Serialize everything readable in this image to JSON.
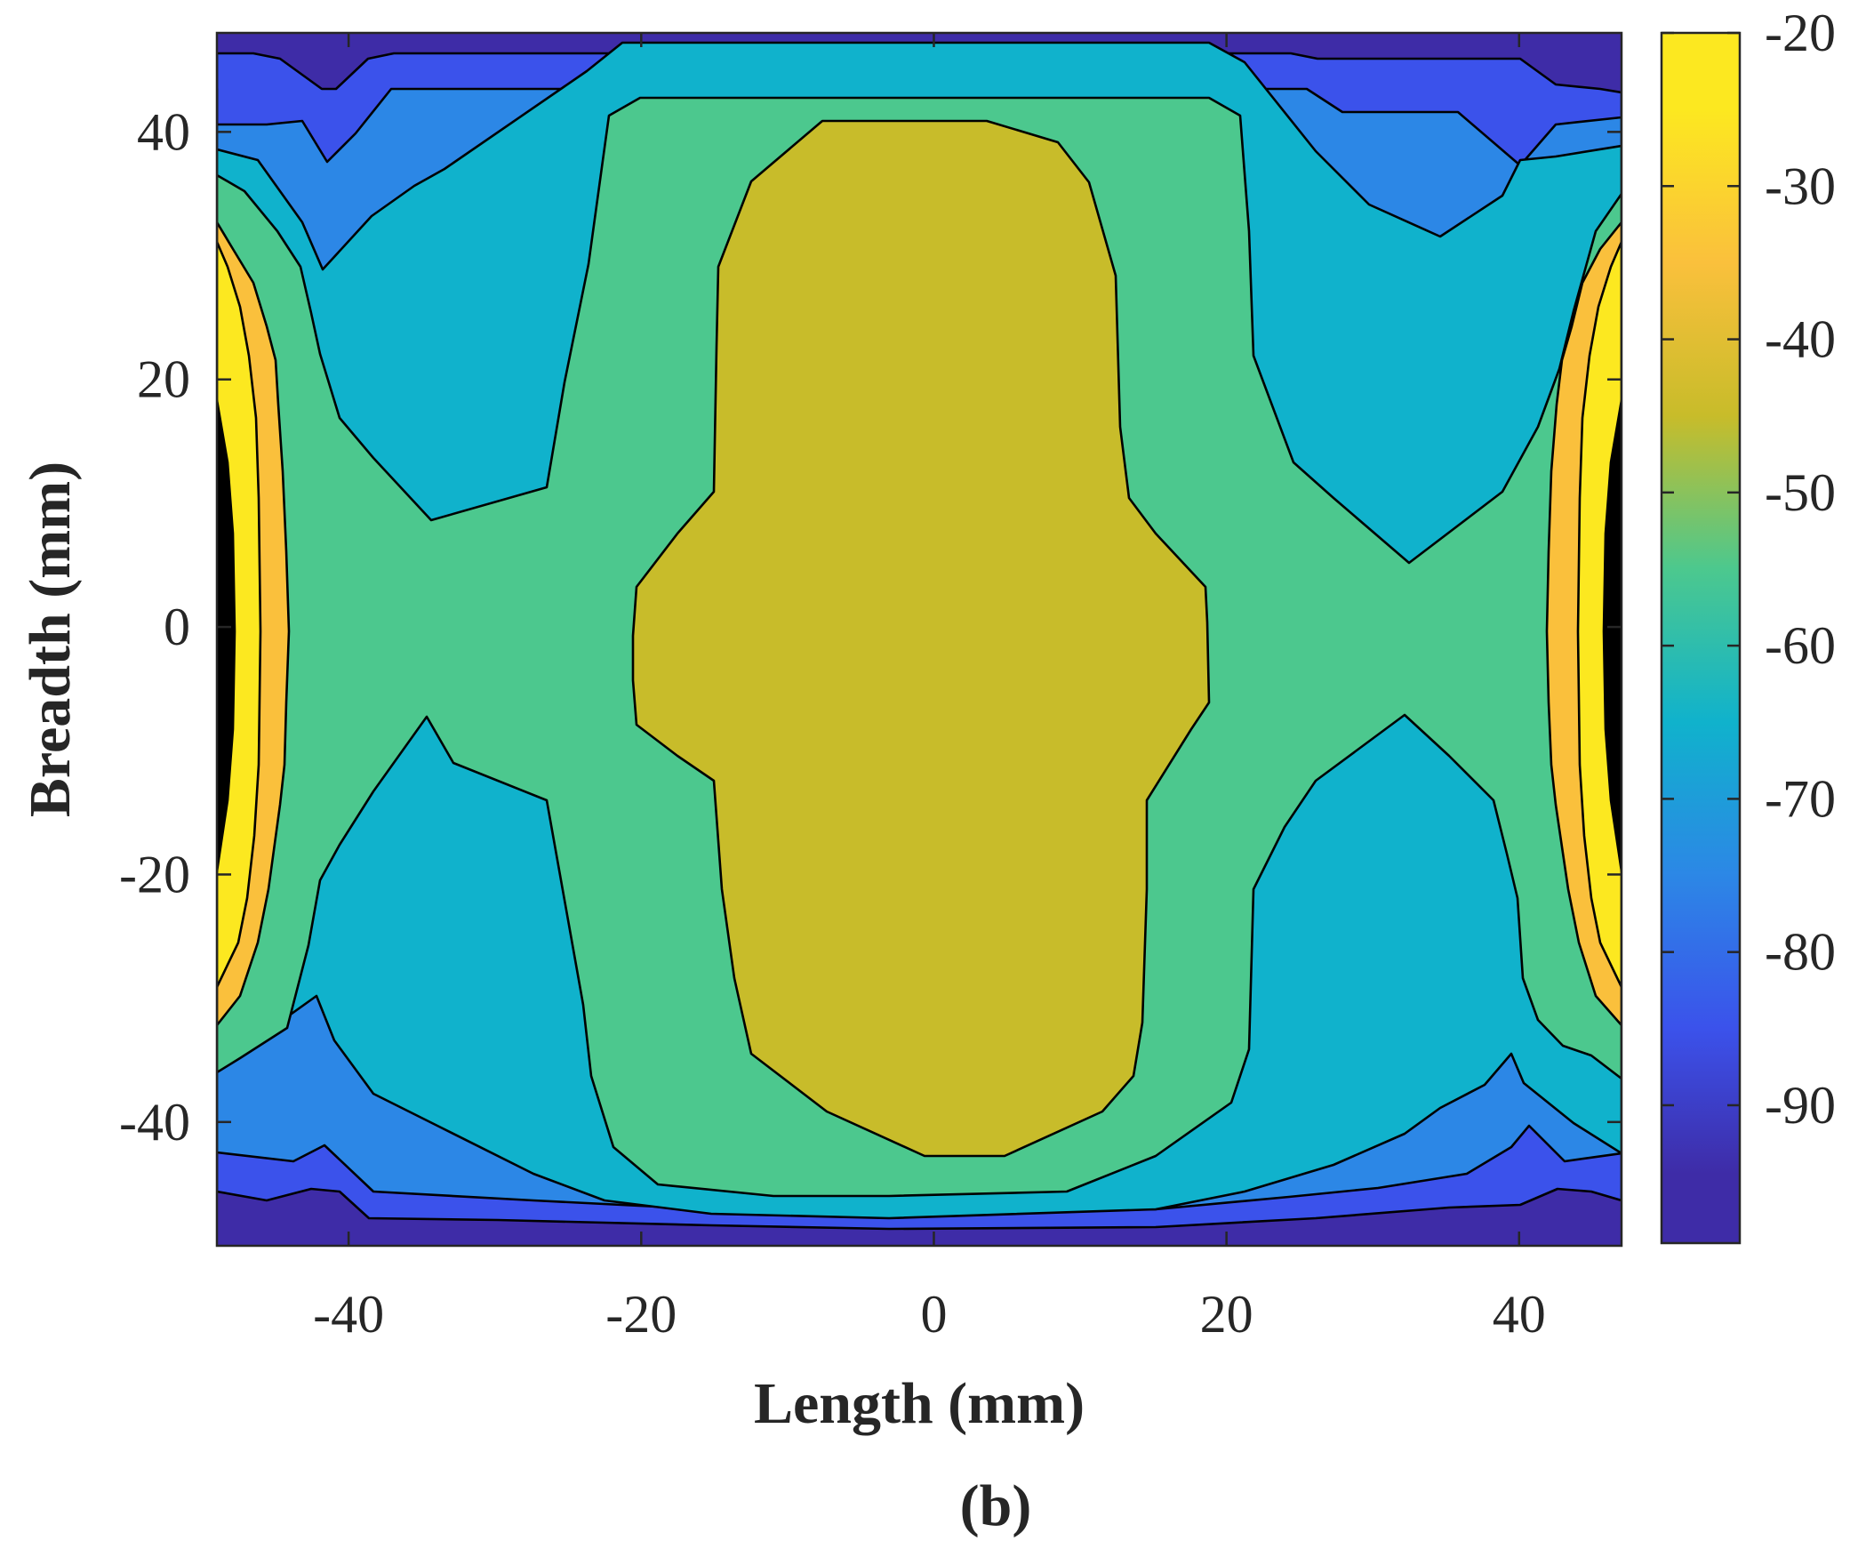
{
  "chart_data": {
    "type": "contour",
    "xlabel": "Length (mm)",
    "ylabel": "Breadth (mm)",
    "panel_label": "(b)",
    "xlim": [
      -49,
      47
    ],
    "ylim": [
      -50,
      48
    ],
    "x_ticks": [
      -40,
      -20,
      0,
      20,
      40
    ],
    "y_ticks": [
      -40,
      -20,
      0,
      20,
      40
    ],
    "x_tick_labels": [
      "-40",
      "-20",
      "0",
      "20",
      "40"
    ],
    "y_tick_labels": [
      "-40",
      "-20",
      "0",
      "20",
      "40"
    ],
    "colorbar": {
      "range": [
        -99,
        -20
      ],
      "ticks": [
        -20,
        -30,
        -40,
        -50,
        -60,
        -70,
        -80,
        -90
      ],
      "tick_labels": [
        "-20",
        "-30",
        "-40",
        "-50",
        "-60",
        "-70",
        "-80",
        "-90"
      ]
    },
    "colormap": "parula",
    "levels": [
      {
        "min": -99,
        "max": -90,
        "color": "#3e2ca7"
      },
      {
        "min": -90,
        "max": -80,
        "color": "#3b52eb"
      },
      {
        "min": -80,
        "max": -70,
        "color": "#2c87e6"
      },
      {
        "min": -70,
        "max": -60,
        "color": "#10b2cc"
      },
      {
        "min": -60,
        "max": -50,
        "color": "#4cc88e"
      },
      {
        "min": -50,
        "max": -40,
        "color": "#c8bc2a"
      },
      {
        "min": -40,
        "max": -30,
        "color": "#fac03c"
      },
      {
        "min": -30,
        "max": -20,
        "color": "#fce820"
      }
    ],
    "regions": [
      {
        "name": "central plateau",
        "level_range": [
          -50,
          -40
        ],
        "x_range": [
          -21,
          18
        ],
        "y_range": [
          -43,
          41
        ]
      },
      {
        "name": "left edge maximum",
        "level_range": [
          -30,
          -20
        ],
        "x_range": [
          -49,
          -47
        ],
        "y_range": [
          -25,
          25
        ]
      },
      {
        "name": "right edge maximum",
        "level_range": [
          -30,
          -20
        ],
        "x_range": [
          45,
          47
        ],
        "y_range": [
          -25,
          25
        ]
      },
      {
        "name": "corner minima",
        "level_range": [
          -99,
          -90
        ],
        "x_range": [
          -49,
          -40
        ],
        "y_range": [
          44,
          48
        ]
      }
    ]
  }
}
